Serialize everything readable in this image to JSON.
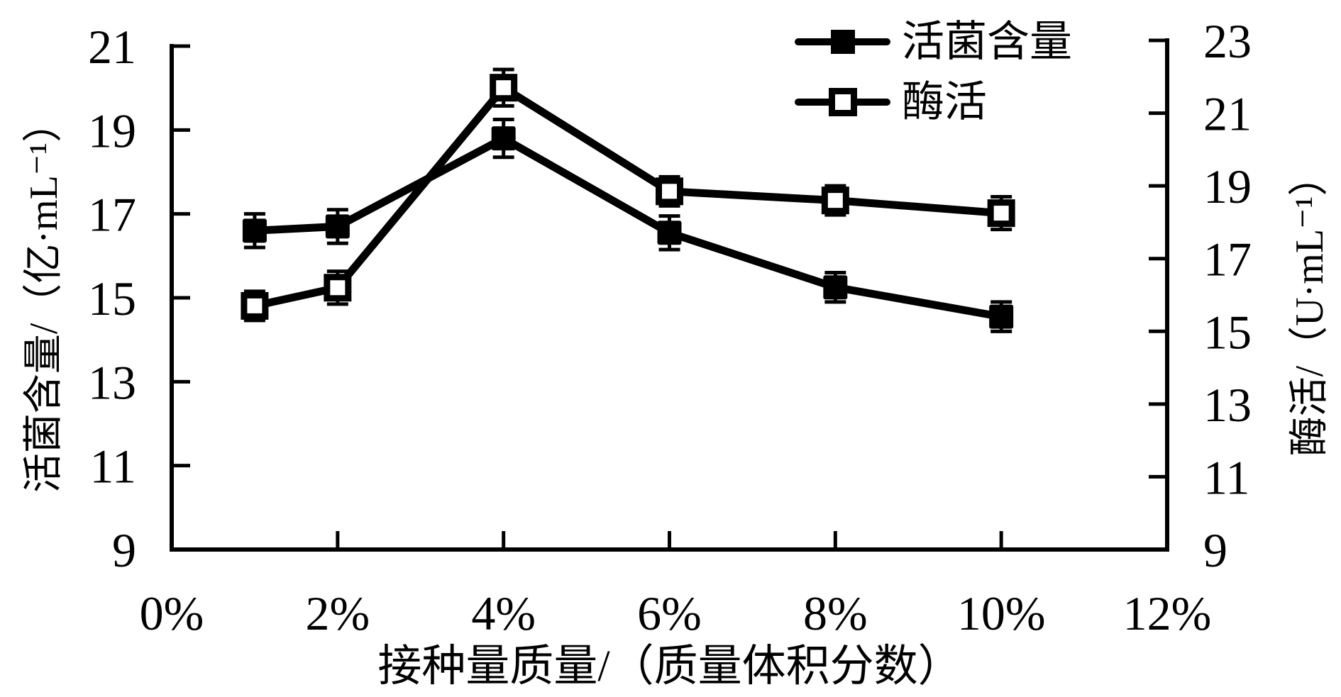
{
  "chart_data": {
    "type": "line",
    "title": "",
    "x_label": "接种量质量/（质量体积分数）",
    "x_tick_labels": [
      "0%",
      "2%",
      "4%",
      "6%",
      "8%",
      "10%",
      "12%"
    ],
    "x_tick_values_pct": [
      0,
      2,
      4,
      6,
      8,
      10,
      12
    ],
    "x_range_pct": [
      0,
      12
    ],
    "grid": "off",
    "legend_position": "top-right",
    "left_axis": {
      "label": "活菌含量/（亿·mL⁻¹）",
      "ticks": [
        9,
        11,
        13,
        15,
        17,
        19,
        21
      ],
      "range": [
        9,
        21
      ]
    },
    "right_axis": {
      "label": "酶活/（U·mL⁻¹）",
      "ticks": [
        9,
        11,
        13,
        15,
        17,
        19,
        21,
        23
      ],
      "range": [
        9,
        23
      ]
    },
    "series": [
      {
        "name": "活菌含量",
        "axis": "left",
        "marker": "filled-square",
        "x_pct": [
          1,
          2,
          4,
          6,
          8,
          10
        ],
        "values": [
          16.6,
          16.7,
          18.8,
          16.55,
          15.25,
          14.55
        ],
        "errors": [
          0.4,
          0.4,
          0.45,
          0.4,
          0.35,
          0.35
        ]
      },
      {
        "name": "酶活",
        "axis": "right",
        "marker": "open-square",
        "x_pct": [
          1,
          2,
          4,
          6,
          8,
          10
        ],
        "values": [
          15.7,
          16.2,
          21.7,
          18.85,
          18.6,
          18.25
        ],
        "errors": [
          0.4,
          0.45,
          0.5,
          0.4,
          0.4,
          0.45
        ]
      }
    ],
    "colors": {
      "foreground": "#000000",
      "background": "#ffffff"
    }
  },
  "legend": {
    "items": [
      {
        "label": "活菌含量",
        "marker": "filled-square"
      },
      {
        "label": "酶活",
        "marker": "open-square"
      }
    ]
  }
}
